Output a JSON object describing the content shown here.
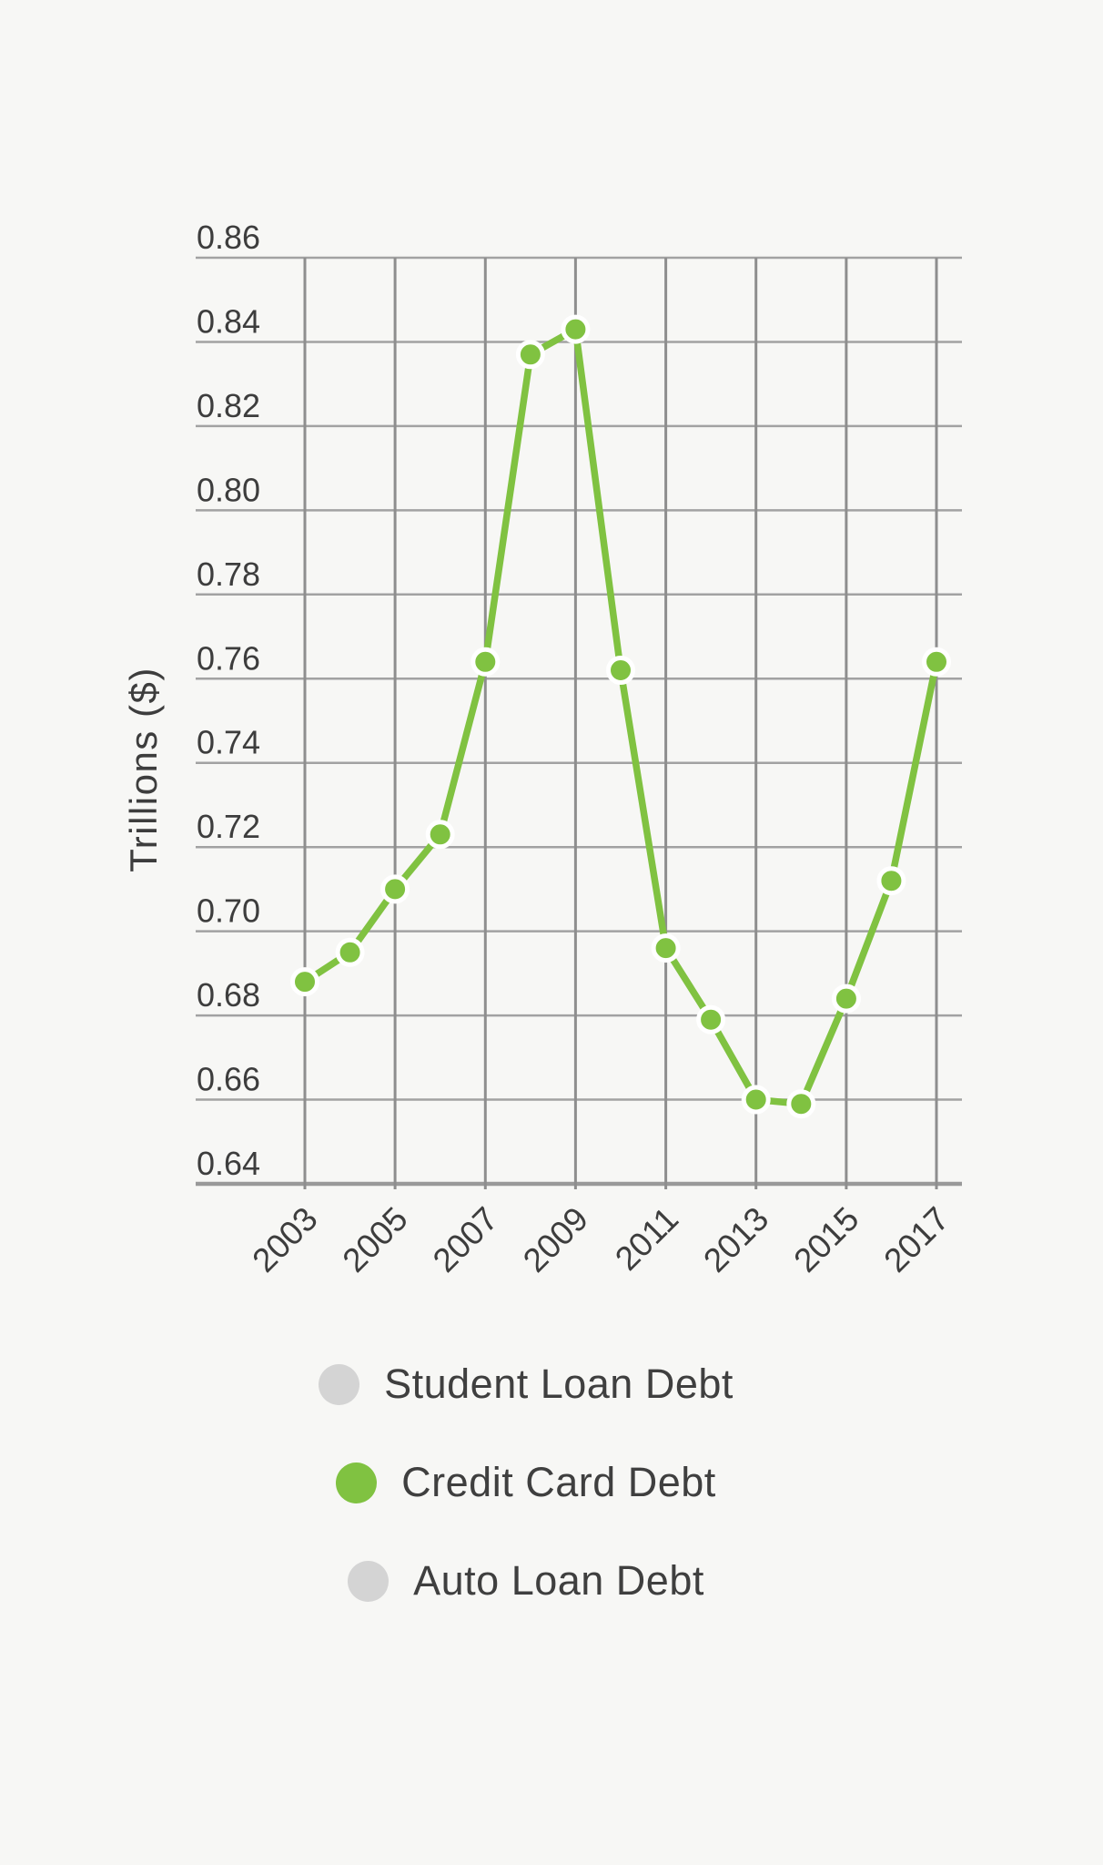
{
  "page": {
    "background_color": "#f7f7f5"
  },
  "chart_data": {
    "type": "line",
    "title": "",
    "xlabel": "",
    "ylabel": "Trillions ($)",
    "x": [
      2003,
      2004,
      2005,
      2006,
      2007,
      2008,
      2009,
      2010,
      2011,
      2012,
      2013,
      2014,
      2015,
      2016,
      2017
    ],
    "x_tick_labels": [
      "2003",
      "2005",
      "2007",
      "2009",
      "2011",
      "2013",
      "2015",
      "2017"
    ],
    "y_ticks": [
      "0.86",
      "0.84",
      "0.82",
      "0.80",
      "0.78",
      "0.76",
      "0.74",
      "0.72",
      "0.70",
      "0.68",
      "0.66",
      "0.64"
    ],
    "ylim": [
      0.64,
      0.86
    ],
    "y_tick_step": 0.02,
    "grid": true,
    "legend_position": "bottom",
    "series": [
      {
        "name": "Student Loan Debt",
        "color": "#d4d4d4",
        "visible": false
      },
      {
        "name": "Credit Card Debt",
        "color": "#80c241",
        "visible": true,
        "values": [
          0.688,
          0.695,
          0.71,
          0.723,
          0.764,
          0.837,
          0.843,
          0.762,
          0.696,
          0.679,
          0.66,
          0.659,
          0.684,
          0.712,
          0.764
        ]
      },
      {
        "name": "Auto Loan Debt",
        "color": "#d4d4d4",
        "visible": false
      }
    ]
  },
  "style_colors": {
    "accent_green": "#80c241",
    "inactive_gray": "#d4d4d4",
    "gridline_horizontal": "#a2a2a2",
    "gridline_vertical": "#8e8e8e",
    "axis_line": "#999999",
    "text": "#3d3d3d",
    "marker_halo": "#ffffff"
  }
}
